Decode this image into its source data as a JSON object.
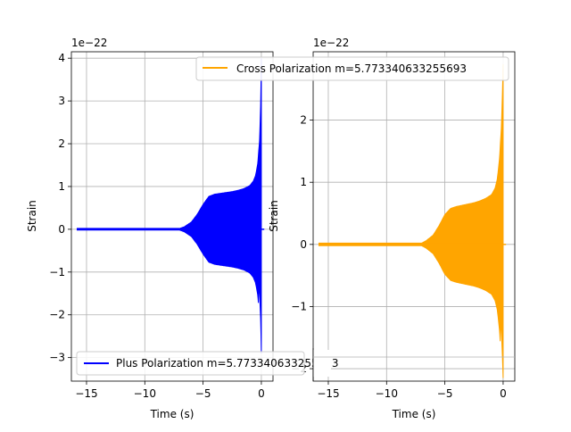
{
  "chart_data": [
    {
      "type": "line",
      "title": "",
      "xlabel": "Time (s)",
      "ylabel": "Strain",
      "offset_text": "1e−22",
      "xlim": [
        -16.3,
        1.0
      ],
      "ylim": [
        -3.55,
        4.15
      ],
      "xticks": [
        -15,
        -10,
        -5,
        0
      ],
      "xtick_labels": [
        "−15",
        "−10",
        "−5",
        "0"
      ],
      "yticks": [
        -3,
        -2,
        -1,
        0,
        1,
        2,
        3,
        4
      ],
      "ytick_labels": [
        "−3",
        "−2",
        "−1",
        "0",
        "1",
        "2",
        "3",
        "4"
      ],
      "grid": true,
      "legend_position": "lower-left",
      "color": "#0000ff",
      "series": [
        {
          "name": "Plus Polarization m=5.773340633255693",
          "envelope": [
            [
              -15.8,
              0.02
            ],
            [
              -7.0,
              0.02
            ],
            [
              -6.6,
              0.06
            ],
            [
              -6.0,
              0.17
            ],
            [
              -5.5,
              0.35
            ],
            [
              -5.0,
              0.58
            ],
            [
              -4.5,
              0.77
            ],
            [
              -4.0,
              0.82
            ],
            [
              -3.5,
              0.84
            ],
            [
              -3.0,
              0.86
            ],
            [
              -2.5,
              0.88
            ],
            [
              -2.0,
              0.91
            ],
            [
              -1.5,
              0.95
            ],
            [
              -1.0,
              1.02
            ],
            [
              -0.7,
              1.12
            ],
            [
              -0.5,
              1.25
            ],
            [
              -0.3,
              1.55
            ],
            [
              -0.15,
              2.1
            ],
            [
              -0.05,
              3.0
            ],
            [
              0.0,
              4.0
            ]
          ],
          "min_end": -2.9
        }
      ]
    },
    {
      "type": "line",
      "title": "",
      "xlabel": "Time (s)",
      "ylabel": "Strain",
      "offset_text": "1e−22",
      "xlim": [
        -16.3,
        1.0
      ],
      "ylim": [
        -2.2,
        3.1
      ],
      "xticks": [
        -15,
        -10,
        -5,
        0
      ],
      "xtick_labels": [
        "−15",
        "−10",
        "−5",
        "0"
      ],
      "yticks": [
        -2,
        -1,
        0,
        1,
        2
      ],
      "ytick_labels": [
        "−2",
        "−1",
        "0",
        "1",
        "2"
      ],
      "grid": true,
      "legend_position": "upper-right",
      "color": "#ffa500",
      "series": [
        {
          "name": "Cross Polarization m=5.773340633255693",
          "envelope": [
            [
              -15.8,
              0.02
            ],
            [
              -7.0,
              0.02
            ],
            [
              -6.6,
              0.06
            ],
            [
              -6.0,
              0.15
            ],
            [
              -5.5,
              0.3
            ],
            [
              -5.0,
              0.48
            ],
            [
              -4.5,
              0.58
            ],
            [
              -4.0,
              0.61
            ],
            [
              -3.5,
              0.63
            ],
            [
              -3.0,
              0.65
            ],
            [
              -2.5,
              0.67
            ],
            [
              -2.0,
              0.7
            ],
            [
              -1.5,
              0.74
            ],
            [
              -1.0,
              0.8
            ],
            [
              -0.7,
              0.9
            ],
            [
              -0.5,
              1.05
            ],
            [
              -0.3,
              1.4
            ],
            [
              -0.15,
              1.9
            ],
            [
              -0.05,
              2.5
            ],
            [
              0.0,
              2.9
            ]
          ],
          "min_end": -2.15
        }
      ]
    }
  ]
}
